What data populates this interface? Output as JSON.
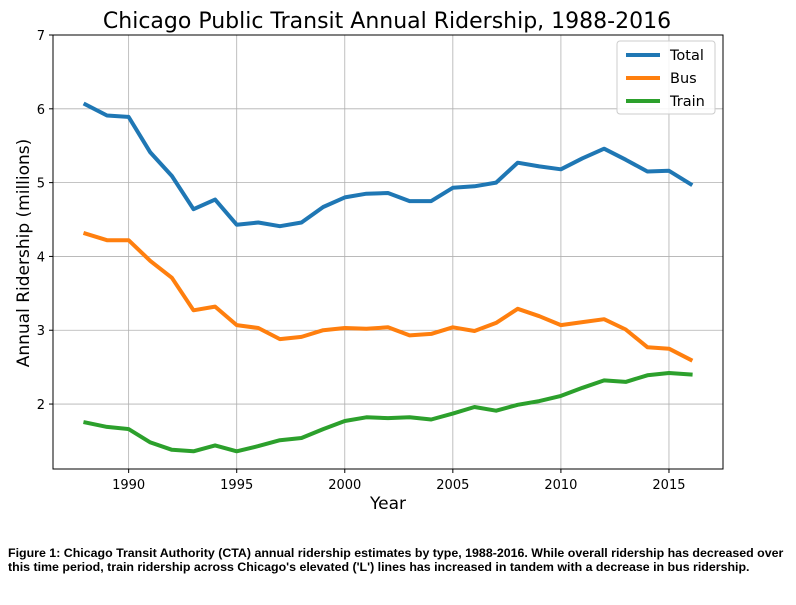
{
  "chart_data": {
    "type": "line",
    "title": "Chicago Public Transit Annual Ridership, 1988-2016",
    "xlabel": "Year",
    "ylabel": "Annual Ridership (millions)",
    "xlim": [
      1986.5,
      2017.5
    ],
    "ylim": [
      1.12,
      7
    ],
    "xticks": [
      1990,
      1995,
      2000,
      2005,
      2010,
      2015
    ],
    "yticks": [
      2,
      3,
      4,
      5,
      6,
      7
    ],
    "grid": true,
    "legend_position": "top-right",
    "x": [
      1988,
      1989,
      1990,
      1991,
      1992,
      1993,
      1994,
      1995,
      1996,
      1997,
      1998,
      1999,
      2000,
      2001,
      2002,
      2003,
      2004,
      2005,
      2006,
      2007,
      2008,
      2009,
      2010,
      2011,
      2012,
      2013,
      2014,
      2015,
      2016
    ],
    "series": [
      {
        "name": "Total",
        "color": "#1f77b4",
        "values": [
          6.06,
          5.91,
          5.89,
          5.41,
          5.09,
          4.64,
          4.77,
          4.43,
          4.46,
          4.41,
          4.46,
          4.67,
          4.8,
          4.85,
          4.86,
          4.75,
          4.75,
          4.93,
          4.95,
          5.0,
          5.27,
          5.22,
          5.18,
          5.33,
          5.46,
          5.31,
          5.15,
          5.16,
          4.98
        ]
      },
      {
        "name": "Bus",
        "color": "#ff7f0e",
        "values": [
          4.31,
          4.22,
          4.22,
          3.94,
          3.71,
          3.27,
          3.32,
          3.07,
          3.03,
          2.88,
          2.91,
          3.0,
          3.03,
          3.02,
          3.04,
          2.93,
          2.95,
          3.04,
          2.99,
          3.1,
          3.29,
          3.19,
          3.07,
          3.11,
          3.15,
          3.01,
          2.77,
          2.75,
          2.6
        ]
      },
      {
        "name": "Train",
        "color": "#2ca02c",
        "values": [
          1.75,
          1.69,
          1.66,
          1.48,
          1.38,
          1.36,
          1.44,
          1.36,
          1.43,
          1.51,
          1.54,
          1.66,
          1.77,
          1.82,
          1.81,
          1.82,
          1.79,
          1.87,
          1.96,
          1.91,
          1.99,
          2.04,
          2.11,
          2.22,
          2.32,
          2.3,
          2.39,
          2.42,
          2.4
        ]
      }
    ]
  },
  "caption": "Figure 1: Chicago Transit Authority (CTA) annual ridership estimates by type, 1988-2016. While overall ridership has decreased over this time period, train ridership across Chicago's elevated ('L') lines has increased in tandem with a decrease in bus ridership."
}
